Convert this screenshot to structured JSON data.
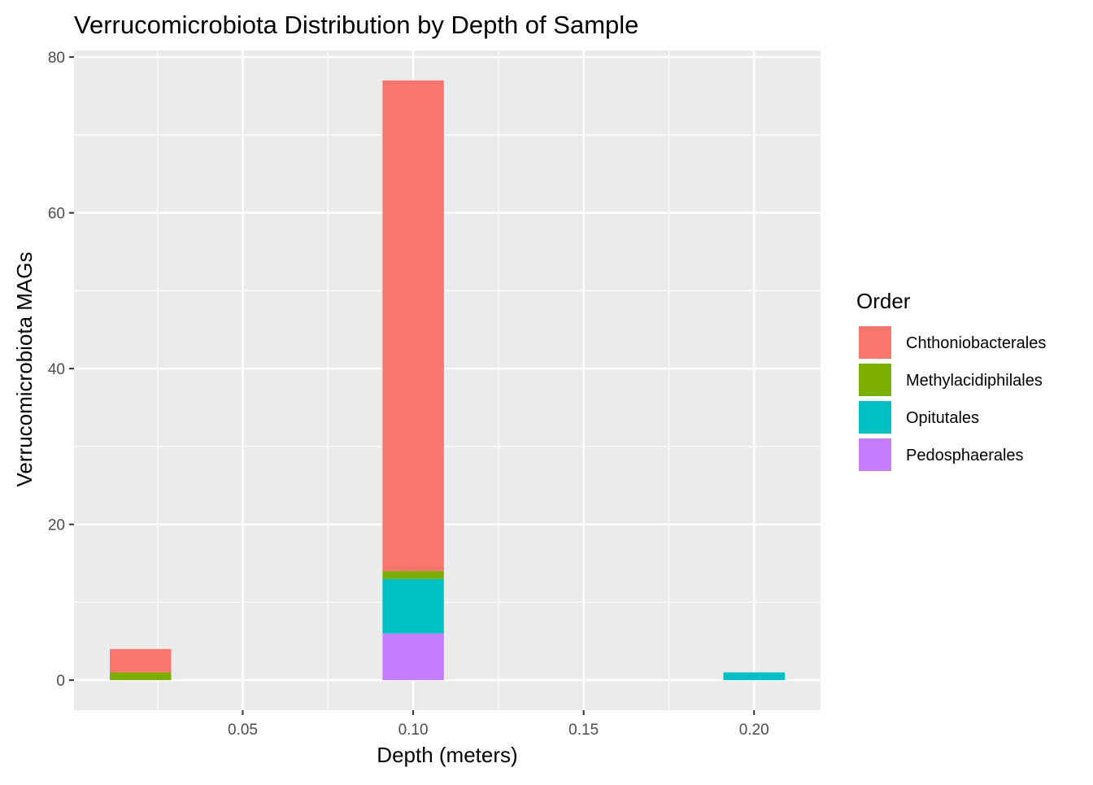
{
  "chart_data": {
    "type": "bar",
    "stacked": true,
    "title": "Verrucomicrobiota Distribution by Depth of Sample",
    "xlabel": "Depth (meters)",
    "ylabel": "Verrucomicrobiota MAGs",
    "xlim": [
      0.0005,
      0.2195
    ],
    "ylim": [
      -3.85,
      80.85
    ],
    "x_ticks": [
      0.05,
      0.1,
      0.15,
      0.2
    ],
    "x_tick_labels": [
      "0.05",
      "0.10",
      "0.15",
      "0.20"
    ],
    "x_minor_ticks": [
      0.025,
      0.075,
      0.125,
      0.175
    ],
    "y_ticks": [
      0,
      20,
      40,
      60,
      80
    ],
    "y_tick_labels": [
      "0",
      "20",
      "40",
      "60",
      "80"
    ],
    "y_minor_ticks": [
      10,
      30,
      50,
      70
    ],
    "bar_width": 0.018,
    "x": [
      0.02,
      0.1,
      0.2
    ],
    "stack_order_bottom_to_top": [
      "Pedosphaerales",
      "Opitutales",
      "Methylacidiphilales",
      "Chthoniobacterales"
    ],
    "series": [
      {
        "name": "Chthoniobacterales",
        "color": "#F8766D",
        "values": [
          3,
          63,
          0
        ]
      },
      {
        "name": "Methylacidiphilales",
        "color": "#7CAE00",
        "values": [
          1,
          1,
          0
        ]
      },
      {
        "name": "Opitutales",
        "color": "#00BFC4",
        "values": [
          0,
          7,
          1
        ]
      },
      {
        "name": "Pedosphaerales",
        "color": "#C77CFF",
        "values": [
          0,
          6,
          0
        ]
      }
    ],
    "legend": {
      "title": "Order",
      "position": "right",
      "entries": [
        "Chthoniobacterales",
        "Methylacidiphilales",
        "Opitutales",
        "Pedosphaerales"
      ]
    },
    "grid": true,
    "panel_background": "#EBEBEB",
    "grid_color": "#FFFFFF"
  }
}
